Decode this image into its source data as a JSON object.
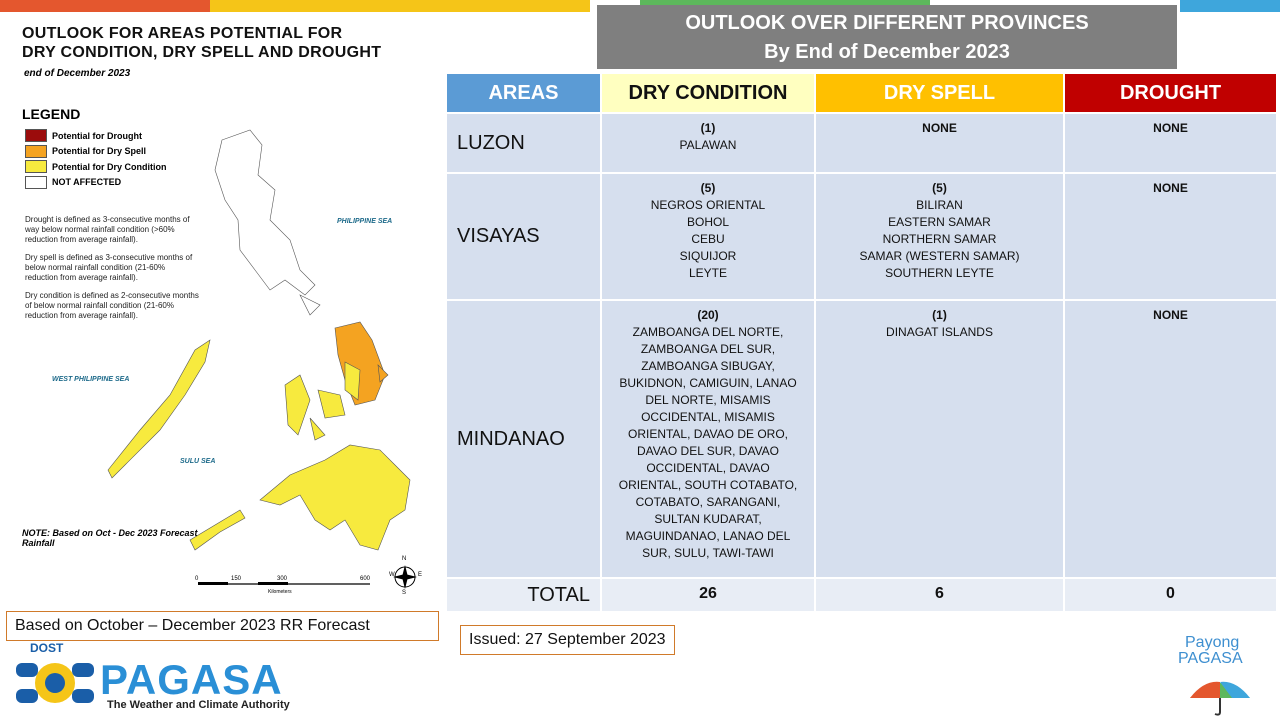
{
  "map_panel": {
    "title": [
      "OUTLOOK FOR AREAS POTENTIAL FOR",
      "DRY CONDITION, DRY SPELL AND DROUGHT"
    ],
    "subtitle": "end of December 2023",
    "legend": {
      "title": "LEGEND",
      "items": [
        {
          "label": "Potential for Drought",
          "color": "#9b0c0c"
        },
        {
          "label": "Potential for Dry Spell",
          "color": "#f4a321"
        },
        {
          "label": "Potential for Dry Condition",
          "color": "#f7ea3e"
        },
        {
          "label": "NOT AFFECTED",
          "color": "#ffffff"
        }
      ]
    },
    "definitions": [
      "Drought is defined as 3-consecutive months of way below normal rainfall condition (>60% reduction from average rainfall).",
      "Dry spell is defined as 3-consecutive months of below normal rainfall condition (21-60% reduction from average rainfall).",
      "Dry condition is defined as 2-consecutive months of below normal rainfall condition (21-60% reduction from average rainfall)."
    ],
    "sea_labels": [
      "PHILIPPINE SEA",
      "WEST PHILIPPINE SEA",
      "SULU SEA"
    ],
    "scale": {
      "ticks": [
        "0",
        "150",
        "300",
        "600"
      ],
      "unit": "Kilometers"
    },
    "compass": [
      "N",
      "E",
      "S",
      "W"
    ],
    "note": "NOTE: Based on Oct -  Dec 2023 Forecast Rainfall"
  },
  "table_title": [
    "OUTLOOK OVER DIFFERENT PROVINCES",
    "By End of December 2023"
  ],
  "table": {
    "headers": [
      "AREAS",
      "DRY CONDITION",
      "DRY SPELL",
      "DROUGHT"
    ],
    "rows": [
      {
        "area": "LUZON",
        "dry_condition": [
          "(1)",
          "PALAWAN"
        ],
        "dry_spell": [
          "NONE"
        ],
        "drought": [
          "NONE"
        ]
      },
      {
        "area": "VISAYAS",
        "dry_condition": [
          "(5)",
          "NEGROS ORIENTAL",
          "BOHOL",
          "CEBU",
          "SIQUIJOR",
          "LEYTE"
        ],
        "dry_spell": [
          "(5)",
          "BILIRAN",
          "EASTERN SAMAR",
          "NORTHERN SAMAR",
          "SAMAR (WESTERN SAMAR)",
          "SOUTHERN LEYTE"
        ],
        "drought": [
          "NONE"
        ]
      },
      {
        "area": "MINDANAO",
        "dry_condition": [
          "(20)",
          "ZAMBOANGA DEL NORTE, ZAMBOANGA DEL SUR, ZAMBOANGA SIBUGAY, BUKIDNON, CAMIGUIN, LANAO DEL NORTE, MISAMIS OCCIDENTAL, MISAMIS ORIENTAL, DAVAO DE ORO, DAVAO DEL SUR, DAVAO OCCIDENTAL, DAVAO ORIENTAL, SOUTH COTABATO,  COTABATO, SARANGANI, SULTAN KUDARAT, MAGUINDANAO, LANAO DEL SUR, SULU, TAWI-TAWI"
        ],
        "dry_spell": [
          "(1)",
          "DINAGAT ISLANDS"
        ],
        "drought": [
          "NONE"
        ]
      }
    ],
    "total": {
      "label": "TOTAL",
      "dry_condition": 26,
      "dry_spell": 6,
      "drought": 0
    }
  },
  "footer": {
    "based_on": "Based on October – December 2023 RR Forecast",
    "issued": "Issued: 27 September 2023",
    "logo": {
      "agency": "DOST",
      "name": "PAGASA",
      "tagline": "The Weather and Climate Authority"
    },
    "payong": [
      "Payong",
      "PAGASA"
    ]
  }
}
